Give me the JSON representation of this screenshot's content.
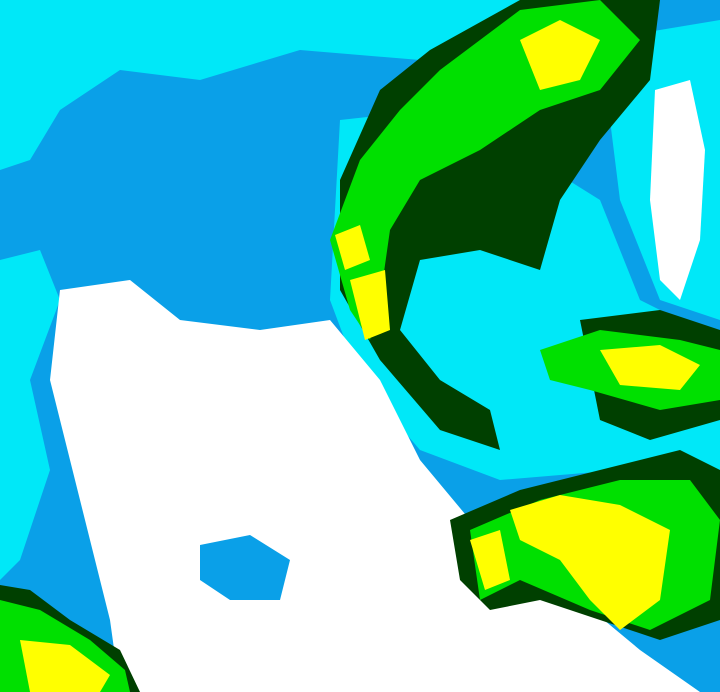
{
  "map": {
    "type": "weather-radar-reflectivity",
    "colors": {
      "light": "#00e8f8",
      "medium": "#0aa0e8",
      "clear": "#ffffff",
      "dark_green": "#004000",
      "green": "#00e000",
      "yellow": "#ffff00"
    }
  }
}
